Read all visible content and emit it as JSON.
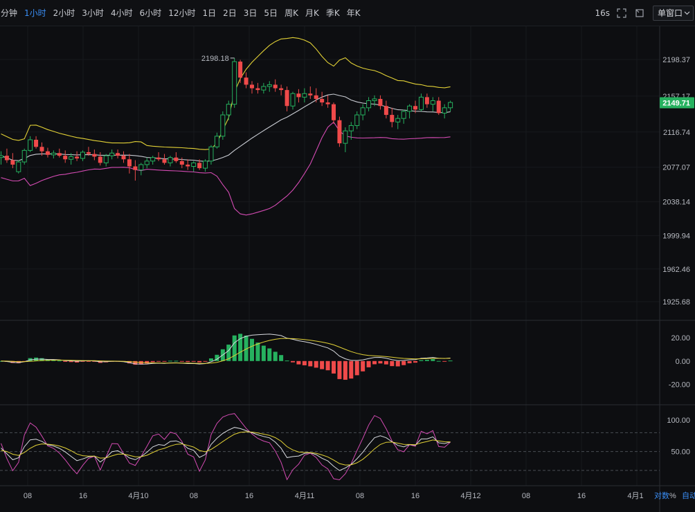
{
  "toolbar": {
    "timeframes": [
      "分钟",
      "1小时",
      "2小时",
      "3小时",
      "4小时",
      "6小时",
      "12小时",
      "1日",
      "2日",
      "3日",
      "5日",
      "周K",
      "月K",
      "季K",
      "年K"
    ],
    "active_timeframe": "1小时",
    "interval_readout": "16s",
    "window_mode": "单窗口",
    "icons": [
      "fullscreen-icon",
      "expand-icon",
      "layout-icon",
      "chevron-down-icon"
    ]
  },
  "bottom_controls": {
    "log_label": "对数",
    "percent_label": "%",
    "auto_label": "自动"
  },
  "colors": {
    "up": "#26b15f",
    "down": "#ef4a4a",
    "boll_upper": "#e3d236",
    "boll_mid": "#c9ccd3",
    "boll_lower": "#d44bb3",
    "last_price_bg": "#26b15f"
  },
  "chart_data": [
    {
      "type": "candlestick",
      "panel": "price",
      "price_axis_ticks": [
        "2198.37",
        "2157.17",
        "2116.74",
        "2077.07",
        "2038.14",
        "1999.94",
        "1962.46",
        "1925.68"
      ],
      "last_price": "2149.71",
      "high_annotation": "2198.18",
      "ylim": [
        1925.68,
        2198.37
      ],
      "x_tick_labels": [
        "08",
        "16",
        "4月10",
        "08",
        "16",
        "4月11",
        "08",
        "16",
        "4月12",
        "08",
        "16",
        "4月1"
      ],
      "candles": [
        [
          2088,
          2095,
          2080,
          2090
        ],
        [
          2090,
          2098,
          2082,
          2085
        ],
        [
          2085,
          2093,
          2076,
          2080
        ],
        [
          2072,
          2085,
          2070,
          2083
        ],
        [
          2083,
          2098,
          2080,
          2096
        ],
        [
          2096,
          2112,
          2094,
          2108
        ],
        [
          2108,
          2112,
          2098,
          2100
        ],
        [
          2100,
          2105,
          2090,
          2095
        ],
        [
          2095,
          2099,
          2088,
          2091
        ],
        [
          2091,
          2096,
          2087,
          2093
        ],
        [
          2093,
          2098,
          2088,
          2090
        ],
        [
          2090,
          2096,
          2082,
          2086
        ],
        [
          2086,
          2093,
          2080,
          2089
        ],
        [
          2089,
          2095,
          2084,
          2087
        ],
        [
          2087,
          2096,
          2084,
          2094
        ],
        [
          2094,
          2100,
          2090,
          2092
        ],
        [
          2092,
          2097,
          2085,
          2089
        ],
        [
          2089,
          2094,
          2079,
          2082
        ],
        [
          2082,
          2092,
          2078,
          2090
        ],
        [
          2090,
          2097,
          2086,
          2093
        ],
        [
          2093,
          2097,
          2087,
          2090
        ],
        [
          2090,
          2095,
          2082,
          2086
        ],
        [
          2086,
          2092,
          2070,
          2078
        ],
        [
          2078,
          2085,
          2062,
          2074
        ],
        [
          2074,
          2082,
          2068,
          2080
        ],
        [
          2080,
          2088,
          2076,
          2084
        ],
        [
          2084,
          2090,
          2080,
          2088
        ],
        [
          2088,
          2094,
          2084,
          2086
        ],
        [
          2086,
          2092,
          2080,
          2082
        ],
        [
          2082,
          2090,
          2078,
          2088
        ],
        [
          2088,
          2094,
          2082,
          2084
        ],
        [
          2084,
          2088,
          2076,
          2080
        ],
        [
          2080,
          2086,
          2074,
          2078
        ],
        [
          2078,
          2084,
          2072,
          2082
        ],
        [
          2082,
          2086,
          2074,
          2076
        ],
        [
          2076,
          2086,
          2072,
          2084
        ],
        [
          2084,
          2102,
          2080,
          2100
        ],
        [
          2100,
          2116,
          2098,
          2112
        ],
        [
          2112,
          2140,
          2108,
          2136
        ],
        [
          2136,
          2152,
          2130,
          2148
        ],
        [
          2148,
          2200,
          2144,
          2196
        ],
        [
          2196,
          2198,
          2172,
          2178
        ],
        [
          2178,
          2184,
          2166,
          2170
        ],
        [
          2170,
          2174,
          2160,
          2166
        ],
        [
          2166,
          2172,
          2160,
          2164
        ],
        [
          2164,
          2172,
          2160,
          2168
        ],
        [
          2168,
          2174,
          2162,
          2170
        ],
        [
          2170,
          2176,
          2162,
          2166
        ],
        [
          2166,
          2170,
          2158,
          2164
        ],
        [
          2164,
          2168,
          2140,
          2146
        ],
        [
          2146,
          2162,
          2142,
          2160
        ],
        [
          2160,
          2165,
          2150,
          2156
        ],
        [
          2156,
          2166,
          2150,
          2160
        ],
        [
          2160,
          2168,
          2154,
          2158
        ],
        [
          2158,
          2166,
          2150,
          2154
        ],
        [
          2154,
          2162,
          2146,
          2150
        ],
        [
          2150,
          2158,
          2144,
          2148
        ],
        [
          2148,
          2150,
          2126,
          2130
        ],
        [
          2130,
          2134,
          2100,
          2104
        ],
        [
          2104,
          2122,
          2094,
          2118
        ],
        [
          2118,
          2128,
          2108,
          2124
        ],
        [
          2124,
          2140,
          2120,
          2136
        ],
        [
          2136,
          2148,
          2130,
          2144
        ],
        [
          2144,
          2156,
          2140,
          2152
        ],
        [
          2152,
          2158,
          2146,
          2154
        ],
        [
          2154,
          2158,
          2142,
          2146
        ],
        [
          2146,
          2152,
          2132,
          2136
        ],
        [
          2136,
          2144,
          2122,
          2128
        ],
        [
          2128,
          2136,
          2120,
          2132
        ],
        [
          2132,
          2142,
          2126,
          2140
        ],
        [
          2140,
          2148,
          2132,
          2146
        ],
        [
          2146,
          2152,
          2138,
          2142
        ],
        [
          2142,
          2160,
          2140,
          2156
        ],
        [
          2156,
          2160,
          2144,
          2148
        ],
        [
          2148,
          2156,
          2140,
          2152
        ],
        [
          2152,
          2156,
          2136,
          2138
        ],
        [
          2138,
          2148,
          2132,
          2144
        ],
        [
          2144,
          2152,
          2140,
          2150
        ]
      ]
    },
    {
      "type": "macd",
      "panel": "macd",
      "axis_ticks": [
        "20.00",
        "0.00",
        "-20.00"
      ],
      "ylim": [
        -32,
        30
      ]
    },
    {
      "type": "kdj",
      "panel": "kdj",
      "axis_ticks": [
        "100.00",
        "50.00"
      ],
      "ylim": [
        0,
        120
      ]
    }
  ]
}
